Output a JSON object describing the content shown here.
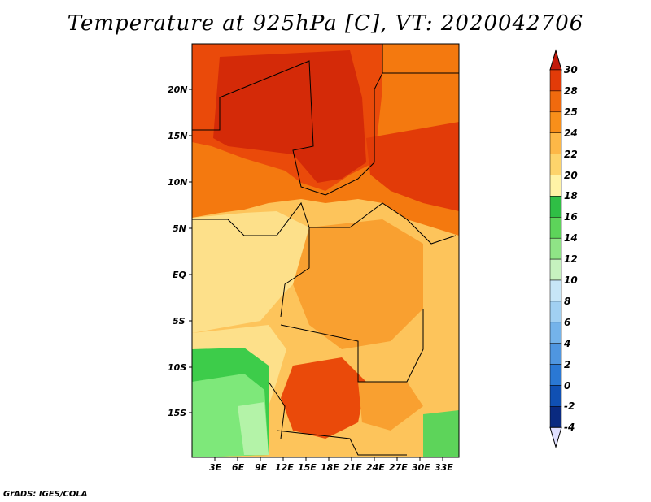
{
  "title": "Temperature at 925hPa [C], VT: 2020042706",
  "credit": "GrADS: IGES/COLA",
  "lat_labels": [
    "20N",
    "15N",
    "10N",
    "5N",
    "EQ",
    "5S",
    "10S",
    "15S"
  ],
  "lon_labels": [
    "3E",
    "6E",
    "9E",
    "12E",
    "15E",
    "18E",
    "21E",
    "24E",
    "27E",
    "30E",
    "33E"
  ],
  "colorbar": {
    "levels": [
      "30",
      "28",
      "25",
      "24",
      "22",
      "20",
      "18",
      "16",
      "14",
      "12",
      "10",
      "8",
      "6",
      "4",
      "2",
      "0",
      "-2",
      "-4"
    ],
    "colors": [
      "#c21a0b",
      "#e23b08",
      "#f06a0e",
      "#f88f1a",
      "#fdb847",
      "#fdd46b",
      "#fff3a6",
      "#2fbf45",
      "#5dd45a",
      "#8fe486",
      "#c6f2bf",
      "#c7e6f7",
      "#a1d0f2",
      "#74b3ea",
      "#4f96e0",
      "#2a78d4",
      "#1050b3",
      "#0a2a80",
      "#07115a"
    ],
    "top_triangle_color": "#c21a0b",
    "bottom_triangle_color": "#e0e0ff"
  },
  "map_colors": {
    "hot": "#d42a08",
    "very_warm": "#ea4a0a",
    "warm": "#f4790f",
    "orange": "#f9a030",
    "light_orange": "#fdc45b",
    "pale": "#fde08a",
    "green": "#3dcc4a",
    "light_green": "#7ee87a",
    "pale_green": "#b4f3a8"
  }
}
